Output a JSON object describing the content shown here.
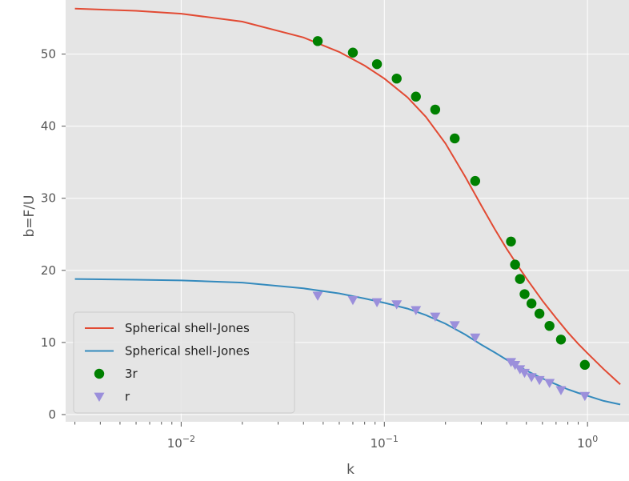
{
  "chart_data": {
    "type": "line",
    "title": "",
    "xlabel": "k",
    "ylabel": "b=F/U",
    "xscale": "log",
    "xlim": [
      0.0027,
      1.6
    ],
    "ylim": [
      -1.0,
      57.5
    ],
    "yticks": [
      0,
      10,
      20,
      30,
      40,
      50
    ],
    "xticks": [
      0.01,
      0.1,
      1
    ],
    "xtick_labels": [
      {
        "base": "10",
        "exp": "−2"
      },
      {
        "base": "10",
        "exp": "−1"
      },
      {
        "base": "10",
        "exp": "0"
      }
    ],
    "grid": true,
    "legend_placement": "lower-left",
    "colors": {
      "background": "#E5E5E5",
      "grid": "#FFFFFF",
      "red_line": "#E24A33",
      "blue_line": "#348ABD",
      "green_points": "#008000",
      "purple_points": "#9B8FDB"
    },
    "series": [
      {
        "name": "Spherical shell-Jones",
        "kind": "line",
        "color": "#E24A33",
        "x": [
          0.003,
          0.006,
          0.01,
          0.02,
          0.04,
          0.06,
          0.08,
          0.1,
          0.13,
          0.16,
          0.2,
          0.25,
          0.3,
          0.35,
          0.4,
          0.45,
          0.5,
          0.6,
          0.7,
          0.8,
          0.9,
          1.0,
          1.2,
          1.45
        ],
        "y": [
          56.3,
          56.0,
          55.6,
          54.5,
          52.3,
          50.3,
          48.4,
          46.6,
          44.0,
          41.3,
          37.6,
          33.0,
          29.0,
          25.7,
          23.0,
          20.8,
          18.9,
          15.8,
          13.4,
          11.4,
          9.8,
          8.5,
          6.3,
          4.2
        ]
      },
      {
        "name": "Spherical shell-Jones",
        "kind": "line",
        "color": "#348ABD",
        "x": [
          0.003,
          0.006,
          0.01,
          0.02,
          0.04,
          0.06,
          0.08,
          0.1,
          0.13,
          0.16,
          0.2,
          0.25,
          0.3,
          0.35,
          0.4,
          0.45,
          0.5,
          0.6,
          0.7,
          0.8,
          0.9,
          1.0,
          1.2,
          1.45
        ],
        "y": [
          18.8,
          18.7,
          18.6,
          18.3,
          17.5,
          16.8,
          16.1,
          15.5,
          14.7,
          13.8,
          12.6,
          11.1,
          9.7,
          8.6,
          7.6,
          6.8,
          6.1,
          5.0,
          4.2,
          3.5,
          3.0,
          2.6,
          1.9,
          1.4
        ]
      },
      {
        "name": "3r",
        "kind": "scatter",
        "marker": "circle",
        "color": "#008000",
        "x": [
          0.047,
          0.07,
          0.092,
          0.115,
          0.143,
          0.178,
          0.222,
          0.28,
          0.42,
          0.44,
          0.465,
          0.49,
          0.53,
          0.58,
          0.65,
          0.74,
          0.97
        ],
        "y": [
          51.8,
          50.2,
          48.6,
          46.6,
          44.1,
          42.3,
          38.3,
          32.4,
          24.0,
          20.8,
          18.8,
          16.7,
          15.4,
          14.0,
          12.3,
          10.4,
          6.9
        ]
      },
      {
        "name": "r",
        "kind": "scatter",
        "marker": "triangle-down",
        "color": "#9B8FDB",
        "x": [
          0.047,
          0.07,
          0.092,
          0.115,
          0.143,
          0.178,
          0.222,
          0.28,
          0.42,
          0.44,
          0.465,
          0.49,
          0.53,
          0.58,
          0.65,
          0.74,
          0.97
        ],
        "y": [
          16.5,
          15.9,
          15.6,
          15.3,
          14.5,
          13.6,
          12.4,
          10.7,
          7.3,
          6.9,
          6.3,
          5.8,
          5.2,
          4.8,
          4.4,
          3.4,
          2.6
        ]
      }
    ],
    "legend": [
      {
        "label": "Spherical shell-Jones",
        "kind": "line",
        "color": "#E24A33"
      },
      {
        "label": "Spherical shell-Jones",
        "kind": "line",
        "color": "#348ABD"
      },
      {
        "label": "3r",
        "kind": "circle",
        "color": "#008000"
      },
      {
        "label": "r",
        "kind": "triangle-down",
        "color": "#9B8FDB"
      }
    ]
  }
}
